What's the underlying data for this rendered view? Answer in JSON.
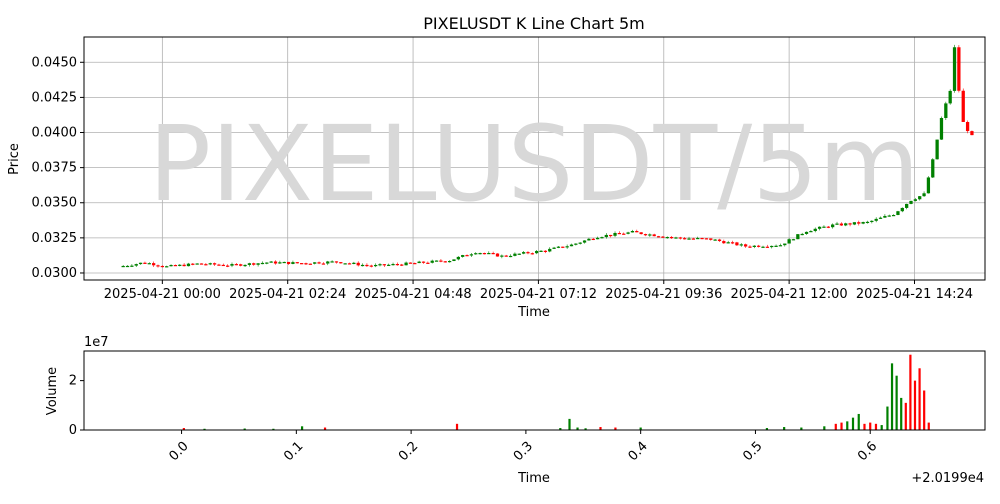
{
  "watermark": "PIXELUSDT/5m",
  "colors": {
    "up": "#008000",
    "down": "#ff0000",
    "grid": "#b0b0b0",
    "watermark": "#d8d8d8"
  },
  "chart_data": [
    {
      "type": "candlestick",
      "title": "PIXELUSDT K Line Chart 5m",
      "xlabel": "Time",
      "ylabel": "Price",
      "grid": true,
      "x_range": [
        "2025-04-20 22:30",
        "2025-04-21 15:45"
      ],
      "ylim": [
        0.0295,
        0.0468
      ],
      "y_ticks": [
        "0.0300",
        "0.0325",
        "0.0350",
        "0.0375",
        "0.0400",
        "0.0425",
        "0.0450"
      ],
      "x_ticks": [
        "2025-04-21 00:00",
        "2025-04-21 02:24",
        "2025-04-21 04:48",
        "2025-04-21 07:12",
        "2025-04-21 09:36",
        "2025-04-21 12:00",
        "2025-04-21 14:24"
      ],
      "candle_interval": "5m",
      "anchors": [
        {
          "time": "2025-04-20 23:10",
          "close": 0.03045
        },
        {
          "time": "2025-04-20 23:40",
          "close": 0.03075
        },
        {
          "time": "2025-04-21 00:05",
          "close": 0.03045
        },
        {
          "time": "2025-04-21 00:40",
          "close": 0.03065
        },
        {
          "time": "2025-04-21 01:20",
          "close": 0.03055
        },
        {
          "time": "2025-04-21 02:00",
          "close": 0.03075
        },
        {
          "time": "2025-04-21 02:40",
          "close": 0.0307
        },
        {
          "time": "2025-04-21 03:20",
          "close": 0.0308
        },
        {
          "time": "2025-04-21 04:00",
          "close": 0.0305
        },
        {
          "time": "2025-04-21 04:40",
          "close": 0.03065
        },
        {
          "time": "2025-04-21 05:30",
          "close": 0.0309
        },
        {
          "time": "2025-04-21 06:00",
          "close": 0.0315
        },
        {
          "time": "2025-04-21 06:30",
          "close": 0.0312
        },
        {
          "time": "2025-04-21 07:20",
          "close": 0.0316
        },
        {
          "time": "2025-04-21 07:50",
          "close": 0.032
        },
        {
          "time": "2025-04-21 08:20",
          "close": 0.0326
        },
        {
          "time": "2025-04-21 09:00",
          "close": 0.0329
        },
        {
          "time": "2025-04-21 09:50",
          "close": 0.0325
        },
        {
          "time": "2025-04-21 10:30",
          "close": 0.0324
        },
        {
          "time": "2025-04-21 11:10",
          "close": 0.0319
        },
        {
          "time": "2025-04-21 11:50",
          "close": 0.032
        },
        {
          "time": "2025-04-21 12:20",
          "close": 0.033
        },
        {
          "time": "2025-04-21 12:50",
          "close": 0.0334
        },
        {
          "time": "2025-04-21 13:30",
          "close": 0.0336
        },
        {
          "time": "2025-04-21 14:00",
          "close": 0.0342
        },
        {
          "time": "2025-04-21 14:20",
          "close": 0.0352
        },
        {
          "time": "2025-04-21 14:35",
          "close": 0.0356
        },
        {
          "time": "2025-04-21 14:45",
          "close": 0.038
        },
        {
          "time": "2025-04-21 14:55",
          "close": 0.041
        },
        {
          "time": "2025-04-21 15:05",
          "close": 0.043
        },
        {
          "time": "2025-04-21 15:10",
          "close": 0.046
        },
        {
          "time": "2025-04-21 15:15",
          "close": 0.043
        },
        {
          "time": "2025-04-21 15:20",
          "close": 0.0407
        },
        {
          "time": "2025-04-21 15:30",
          "close": 0.0397
        }
      ]
    },
    {
      "type": "bar",
      "xlabel": "Time",
      "ylabel": "Volume",
      "scale_label": "1e7",
      "offset_label": "+2.0199e4",
      "grid": false,
      "xlim": [
        -0.085,
        0.7
      ],
      "ylim": [
        0,
        3.2
      ],
      "y_ticks": [
        "0",
        "2"
      ],
      "x_ticks": [
        "0.0",
        "0.1",
        "0.2",
        "0.3",
        "0.4",
        "0.5",
        "0.6"
      ],
      "bars": [
        {
          "x": -0.05,
          "value": 0.02,
          "dir": "up"
        },
        {
          "x": 0.002,
          "value": 0.08,
          "dir": "down"
        },
        {
          "x": 0.02,
          "value": 0.05,
          "dir": "up"
        },
        {
          "x": 0.055,
          "value": 0.06,
          "dir": "up"
        },
        {
          "x": 0.08,
          "value": 0.05,
          "dir": "up"
        },
        {
          "x": 0.105,
          "value": 0.15,
          "dir": "up"
        },
        {
          "x": 0.125,
          "value": 0.1,
          "dir": "down"
        },
        {
          "x": 0.24,
          "value": 0.25,
          "dir": "down"
        },
        {
          "x": 0.33,
          "value": 0.08,
          "dir": "up"
        },
        {
          "x": 0.338,
          "value": 0.45,
          "dir": "up"
        },
        {
          "x": 0.345,
          "value": 0.1,
          "dir": "up"
        },
        {
          "x": 0.352,
          "value": 0.07,
          "dir": "up"
        },
        {
          "x": 0.365,
          "value": 0.12,
          "dir": "down"
        },
        {
          "x": 0.378,
          "value": 0.1,
          "dir": "down"
        },
        {
          "x": 0.4,
          "value": 0.1,
          "dir": "up"
        },
        {
          "x": 0.51,
          "value": 0.08,
          "dir": "up"
        },
        {
          "x": 0.525,
          "value": 0.12,
          "dir": "up"
        },
        {
          "x": 0.54,
          "value": 0.1,
          "dir": "up"
        },
        {
          "x": 0.56,
          "value": 0.15,
          "dir": "up"
        },
        {
          "x": 0.57,
          "value": 0.25,
          "dir": "down"
        },
        {
          "x": 0.575,
          "value": 0.3,
          "dir": "down"
        },
        {
          "x": 0.58,
          "value": 0.35,
          "dir": "up"
        },
        {
          "x": 0.585,
          "value": 0.5,
          "dir": "up"
        },
        {
          "x": 0.59,
          "value": 0.65,
          "dir": "up"
        },
        {
          "x": 0.595,
          "value": 0.25,
          "dir": "down"
        },
        {
          "x": 0.6,
          "value": 0.3,
          "dir": "down"
        },
        {
          "x": 0.605,
          "value": 0.25,
          "dir": "down"
        },
        {
          "x": 0.61,
          "value": 0.2,
          "dir": "up"
        },
        {
          "x": 0.615,
          "value": 0.95,
          "dir": "up"
        },
        {
          "x": 0.619,
          "value": 2.7,
          "dir": "up"
        },
        {
          "x": 0.623,
          "value": 2.2,
          "dir": "up"
        },
        {
          "x": 0.627,
          "value": 1.3,
          "dir": "up"
        },
        {
          "x": 0.631,
          "value": 1.1,
          "dir": "down"
        },
        {
          "x": 0.635,
          "value": 3.05,
          "dir": "down"
        },
        {
          "x": 0.639,
          "value": 2.0,
          "dir": "down"
        },
        {
          "x": 0.643,
          "value": 2.5,
          "dir": "down"
        },
        {
          "x": 0.647,
          "value": 1.6,
          "dir": "down"
        },
        {
          "x": 0.651,
          "value": 0.3,
          "dir": "down"
        }
      ]
    }
  ]
}
